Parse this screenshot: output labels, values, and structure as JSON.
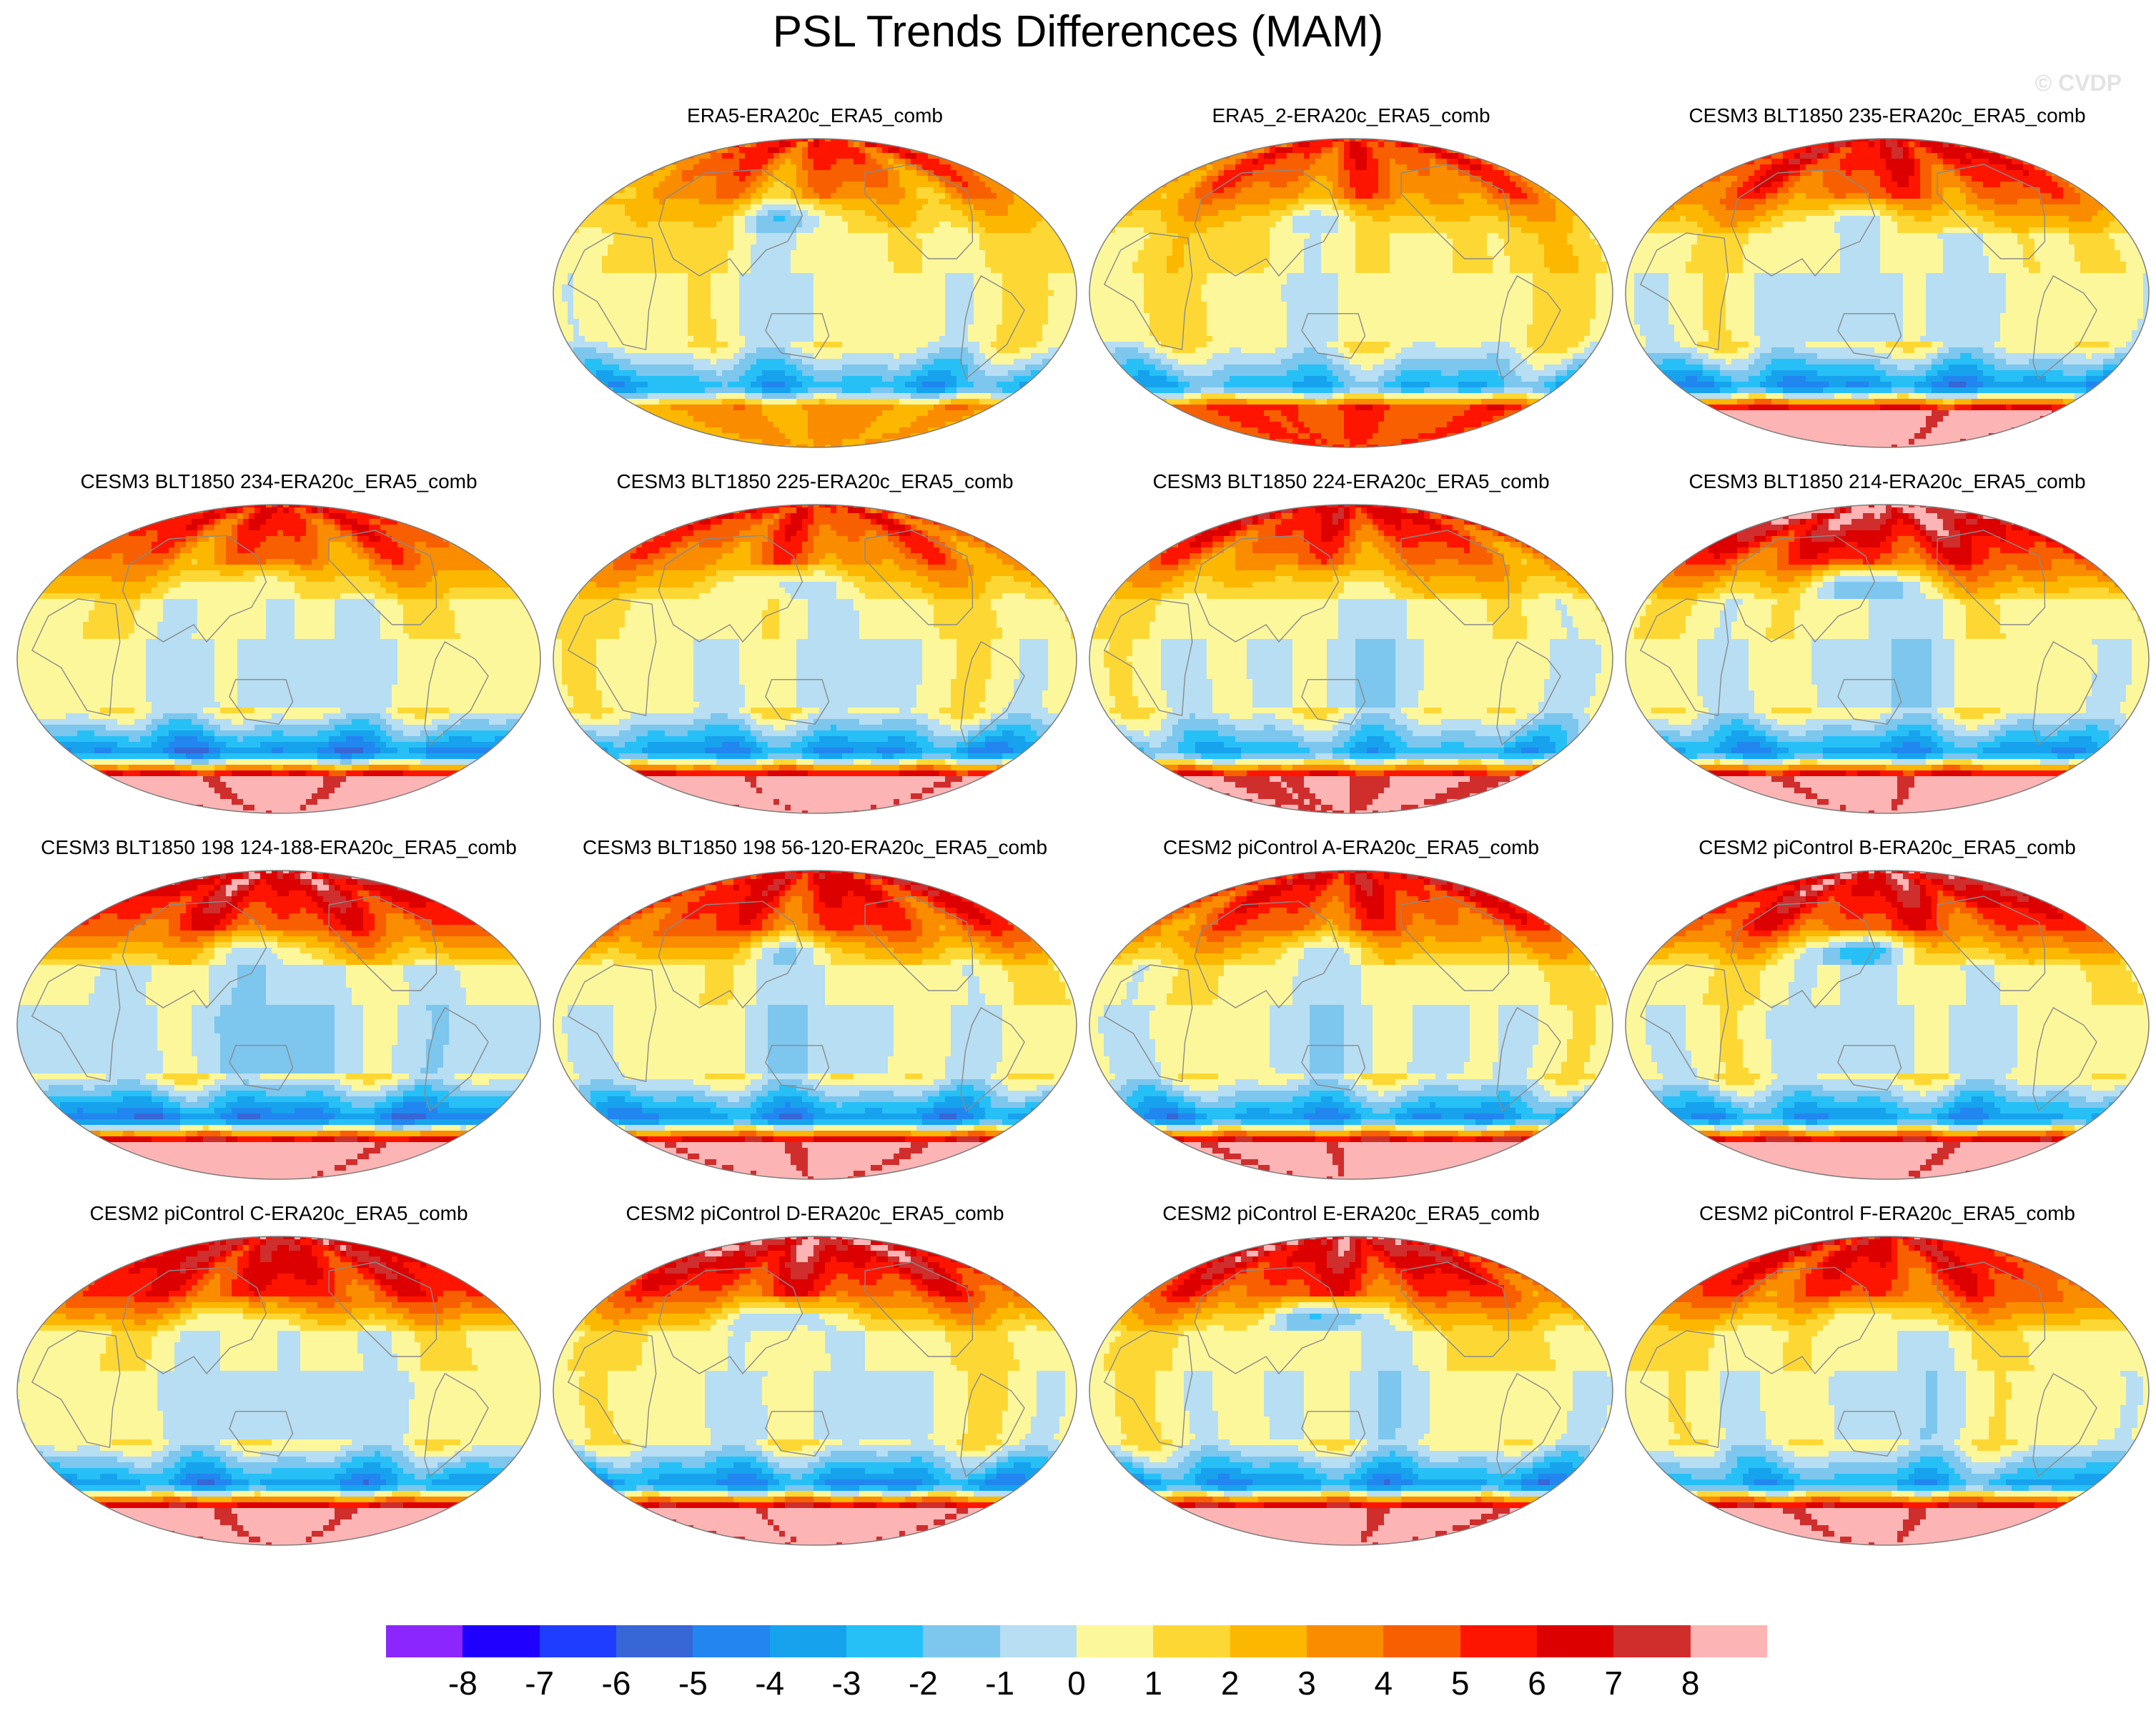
{
  "title": "PSL Trends Differences (MAM)",
  "watermark": "© CVDP",
  "variable": "PSL",
  "season": "MAM",
  "colorbar": {
    "levels": [
      "-8",
      "-7",
      "-6",
      "-5",
      "-4",
      "-3",
      "-2",
      "-1",
      "0",
      "1",
      "2",
      "3",
      "4",
      "5",
      "6",
      "7",
      "8"
    ],
    "colors": [
      "#8c26ff",
      "#1f00ff",
      "#1f3dff",
      "#3766d6",
      "#2186f0",
      "#17a2ee",
      "#26c0f7",
      "#7dc6ee",
      "#b7def2",
      "#fdf79c",
      "#fdd835",
      "#fcb700",
      "#fa8c00",
      "#f85f00",
      "#fe1500",
      "#dc0000",
      "#d02d2d",
      "#fdb4b4"
    ]
  },
  "colors": {
    "land_outline": "#8a8a8a",
    "map_border": "#7d7d7d"
  },
  "panels": [
    {
      "title": "ERA5-ERA20c_ERA5_comb",
      "field": {
        "np": 5.5,
        "nhl": 3.0,
        "np_low": -3.5,
        "eq": 0.4,
        "so": -3.2,
        "sr": 4.0,
        "ant": 3.0
      }
    },
    {
      "title": "ERA5_2-ERA20c_ERA5_comb",
      "field": {
        "np": 5.5,
        "nhl": 3.5,
        "np_low": -2.5,
        "eq": 0.6,
        "so": -2.8,
        "sr": 6.0,
        "ant": 5.0
      }
    },
    {
      "title": "CESM3 BLT1850 235-ERA20c_ERA5_comb",
      "field": {
        "np": 6.5,
        "nhl": 4.0,
        "np_low": -3.0,
        "eq": 0.0,
        "so": -4.2,
        "sr": 7.0,
        "ant": 8.5
      }
    },
    {
      "title": "CESM3 BLT1850 234-ERA20c_ERA5_comb",
      "field": {
        "np": 6.0,
        "nhl": 3.5,
        "np_low": -2.5,
        "eq": 0.0,
        "so": -4.5,
        "sr": 7.0,
        "ant": 8.5
      }
    },
    {
      "title": "CESM3 BLT1850 225-ERA20c_ERA5_comb",
      "field": {
        "np": 5.5,
        "nhl": 3.5,
        "np_low": -3.5,
        "eq": 0.2,
        "so": -4.0,
        "sr": 7.0,
        "ant": 8.5
      }
    },
    {
      "title": "CESM3 BLT1850 224-ERA20c_ERA5_comb",
      "field": {
        "np": 6.5,
        "nhl": 3.5,
        "np_low": -1.5,
        "eq": 0.0,
        "so": -3.0,
        "sr": 6.5,
        "ant": 8.0
      }
    },
    {
      "title": "CESM3 BLT1850 214-ERA20c_ERA5_comb",
      "field": {
        "np": 8.5,
        "nhl": 4.5,
        "np_low": -5.0,
        "eq": 0.0,
        "so": -3.8,
        "sr": 7.0,
        "ant": 8.5
      }
    },
    {
      "title": "CESM3 BLT1850 198 124-188-ERA20c_ERA5_comb",
      "field": {
        "np": 7.5,
        "nhl": 4.5,
        "np_low": -3.0,
        "eq": -0.6,
        "so": -4.8,
        "sr": 7.5,
        "ant": 8.5
      }
    },
    {
      "title": "CESM3 BLT1850 198 56-120-ERA20c_ERA5_comb",
      "field": {
        "np": 6.5,
        "nhl": 4.5,
        "np_low": -3.0,
        "eq": 0.0,
        "so": -4.2,
        "sr": 7.5,
        "ant": 8.5
      }
    },
    {
      "title": "CESM2 piControl A-ERA20c_ERA5_comb",
      "field": {
        "np": 6.5,
        "nhl": 4.0,
        "np_low": -2.5,
        "eq": 0.0,
        "so": -4.0,
        "sr": 7.5,
        "ant": 8.5
      }
    },
    {
      "title": "CESM2 piControl B-ERA20c_ERA5_comb",
      "field": {
        "np": 7.5,
        "nhl": 4.5,
        "np_low": -5.5,
        "eq": 0.0,
        "so": -3.8,
        "sr": 7.5,
        "ant": 8.5
      }
    },
    {
      "title": "CESM2 piControl C-ERA20c_ERA5_comb",
      "field": {
        "np": 7.0,
        "nhl": 5.0,
        "np_low": -2.5,
        "eq": 0.0,
        "so": -4.0,
        "sr": 7.5,
        "ant": 8.5
      }
    },
    {
      "title": "CESM2 piControl D-ERA20c_ERA5_comb",
      "field": {
        "np": 8.0,
        "nhl": 4.5,
        "np_low": -4.0,
        "eq": 0.2,
        "so": -4.2,
        "sr": 7.5,
        "ant": 8.5
      }
    },
    {
      "title": "CESM2 piControl E-ERA20c_ERA5_comb",
      "field": {
        "np": 7.5,
        "nhl": 4.5,
        "np_low": -5.5,
        "eq": 0.2,
        "so": -4.0,
        "sr": 7.5,
        "ant": 8.5
      }
    },
    {
      "title": "CESM2 piControl F-ERA20c_ERA5_comb",
      "field": {
        "np": 6.5,
        "nhl": 4.5,
        "np_low": -2.5,
        "eq": 0.2,
        "so": -3.2,
        "sr": 7.5,
        "ant": 8.5
      }
    }
  ]
}
